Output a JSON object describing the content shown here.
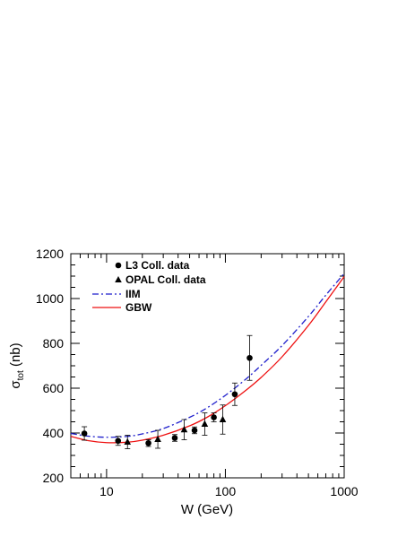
{
  "chart_data": {
    "type": "scatter",
    "title": "",
    "xlabel": "W (GeV)",
    "ylabel_main": "σ",
    "ylabel_sub": "tot",
    "ylabel_unit": " (nb)",
    "xscale": "log",
    "xlim": [
      5,
      1000
    ],
    "ylim": [
      200,
      1200
    ],
    "grid": false,
    "legend_position": "top-left",
    "x_ticks": [
      {
        "value": 10,
        "label": "10"
      },
      {
        "value": 100,
        "label": "100"
      },
      {
        "value": 1000,
        "label": "1000"
      }
    ],
    "y_ticks": [
      {
        "value": 200,
        "label": "200"
      },
      {
        "value": 400,
        "label": "400"
      },
      {
        "value": 600,
        "label": "600"
      },
      {
        "value": 800,
        "label": "800"
      },
      {
        "value": 1000,
        "label": "1000"
      },
      {
        "value": 1200,
        "label": "1200"
      }
    ],
    "series": [
      {
        "name": "L3 Coll. data",
        "marker": "circle",
        "color": "#000000",
        "points": [
          {
            "x": 6.5,
            "y": 398,
            "err": 30
          },
          {
            "x": 12.5,
            "y": 365,
            "err": 20
          },
          {
            "x": 22.5,
            "y": 355,
            "err": 15
          },
          {
            "x": 37.5,
            "y": 378,
            "err": 15
          },
          {
            "x": 55,
            "y": 412,
            "err": 15
          },
          {
            "x": 80,
            "y": 470,
            "err": 20
          },
          {
            "x": 120,
            "y": 573,
            "err": 50
          },
          {
            "x": 160,
            "y": 735,
            "err": 100
          }
        ]
      },
      {
        "name": "OPAL Coll. data",
        "marker": "triangle",
        "color": "#000000",
        "points": [
          {
            "x": 15,
            "y": 360,
            "err": 30
          },
          {
            "x": 27,
            "y": 372,
            "err": 40
          },
          {
            "x": 45,
            "y": 415,
            "err": 45
          },
          {
            "x": 67,
            "y": 440,
            "err": 50
          },
          {
            "x": 95,
            "y": 460,
            "err": 65
          }
        ]
      },
      {
        "name": "IIM",
        "style": "dash-dot",
        "color": "#1f1fcc",
        "points": [
          {
            "x": 5,
            "y": 398
          },
          {
            "x": 7,
            "y": 386
          },
          {
            "x": 10,
            "y": 381
          },
          {
            "x": 15,
            "y": 385
          },
          {
            "x": 20,
            "y": 396
          },
          {
            "x": 30,
            "y": 420
          },
          {
            "x": 50,
            "y": 470
          },
          {
            "x": 70,
            "y": 512
          },
          {
            "x": 100,
            "y": 568
          },
          {
            "x": 150,
            "y": 642
          },
          {
            "x": 200,
            "y": 702
          },
          {
            "x": 300,
            "y": 790
          },
          {
            "x": 500,
            "y": 920
          },
          {
            "x": 700,
            "y": 1015
          },
          {
            "x": 1000,
            "y": 1112
          }
        ]
      },
      {
        "name": "GBW",
        "style": "solid",
        "color": "#ee1111",
        "points": [
          {
            "x": 5,
            "y": 385
          },
          {
            "x": 7,
            "y": 366
          },
          {
            "x": 10,
            "y": 357
          },
          {
            "x": 15,
            "y": 359
          },
          {
            "x": 20,
            "y": 368
          },
          {
            "x": 30,
            "y": 390
          },
          {
            "x": 50,
            "y": 432
          },
          {
            "x": 70,
            "y": 470
          },
          {
            "x": 100,
            "y": 522
          },
          {
            "x": 150,
            "y": 592
          },
          {
            "x": 200,
            "y": 648
          },
          {
            "x": 300,
            "y": 740
          },
          {
            "x": 500,
            "y": 880
          },
          {
            "x": 700,
            "y": 985
          },
          {
            "x": 1000,
            "y": 1098
          }
        ]
      }
    ]
  }
}
